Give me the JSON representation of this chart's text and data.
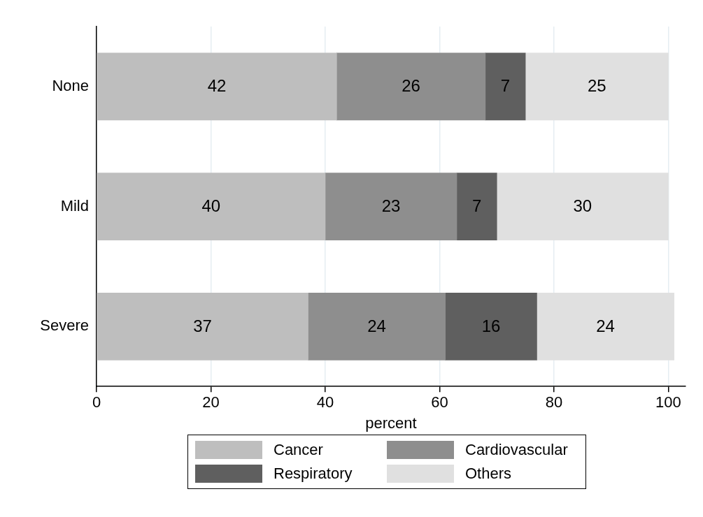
{
  "chart_data": {
    "type": "bar",
    "orientation": "horizontal",
    "stacked": true,
    "categories": [
      "None",
      "Mild",
      "Severe"
    ],
    "series": [
      {
        "name": "Cancer",
        "color": "#bebebe",
        "values": [
          42,
          40,
          37
        ]
      },
      {
        "name": "Cardiovascular",
        "color": "#8e8e8e",
        "values": [
          26,
          23,
          24
        ]
      },
      {
        "name": "Respiratory",
        "color": "#5f5f5f",
        "values": [
          7,
          7,
          16
        ]
      },
      {
        "name": "Others",
        "color": "#e0e0e0",
        "values": [
          25,
          30,
          24
        ]
      }
    ],
    "xlabel": "percent",
    "xlim": [
      0,
      103
    ],
    "xticks": [
      0,
      20,
      40,
      60,
      80,
      100
    ],
    "grid": "x",
    "legend": "bottom",
    "data_labels": true
  }
}
